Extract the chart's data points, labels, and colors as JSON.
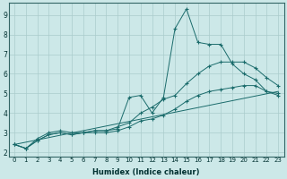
{
  "xlabel": "Humidex (Indice chaleur)",
  "background_color": "#cce8e8",
  "grid_color": "#aacccc",
  "line_color": "#1a6b6b",
  "xlim": [
    -0.5,
    23.5
  ],
  "ylim": [
    1.8,
    9.6
  ],
  "series": [
    {
      "x": [
        0,
        1,
        2,
        3,
        4,
        5,
        6,
        7,
        8,
        9,
        10,
        11,
        12,
        13,
        14,
        15,
        16,
        17,
        18,
        19,
        20,
        21,
        22,
        23
      ],
      "y": [
        2.4,
        2.2,
        2.7,
        3.0,
        3.1,
        3.0,
        3.0,
        3.1,
        3.1,
        3.2,
        4.8,
        4.9,
        4.0,
        4.8,
        8.3,
        9.3,
        7.6,
        7.5,
        7.5,
        6.5,
        6.0,
        5.7,
        5.1,
        5.0
      ],
      "marker": true
    },
    {
      "x": [
        0,
        1,
        2,
        3,
        4,
        5,
        6,
        7,
        8,
        9,
        10,
        11,
        12,
        13,
        14,
        15,
        16,
        17,
        18,
        19,
        20,
        21,
        22,
        23
      ],
      "y": [
        2.4,
        2.2,
        2.6,
        2.9,
        3.0,
        2.9,
        3.0,
        3.1,
        3.1,
        3.3,
        3.5,
        4.0,
        4.3,
        4.7,
        4.9,
        5.5,
        6.0,
        6.4,
        6.6,
        6.6,
        6.6,
        6.3,
        5.8,
        5.4
      ],
      "marker": true
    },
    {
      "x": [
        0,
        1,
        2,
        3,
        4,
        5,
        6,
        7,
        8,
        9,
        10,
        11,
        12,
        13,
        14,
        15,
        16,
        17,
        18,
        19,
        20,
        21,
        22,
        23
      ],
      "y": [
        2.4,
        2.2,
        2.6,
        2.9,
        3.0,
        2.9,
        3.0,
        3.0,
        3.0,
        3.1,
        3.3,
        3.6,
        3.7,
        3.9,
        4.2,
        4.6,
        4.9,
        5.1,
        5.2,
        5.3,
        5.4,
        5.4,
        5.1,
        4.9
      ],
      "marker": true
    },
    {
      "x": [
        0,
        23
      ],
      "y": [
        2.4,
        5.1
      ],
      "marker": false
    }
  ]
}
